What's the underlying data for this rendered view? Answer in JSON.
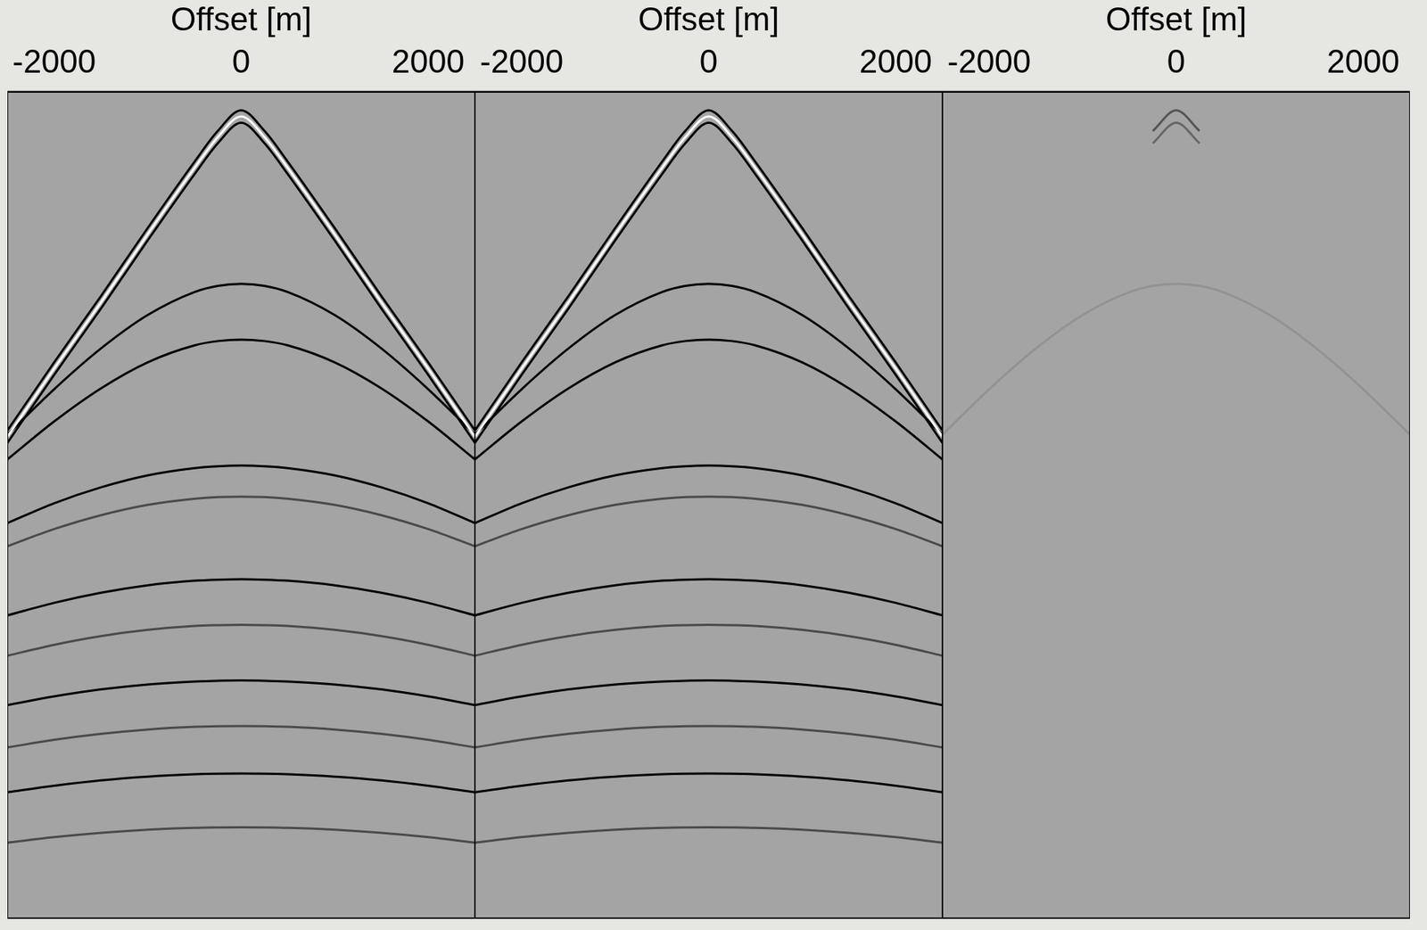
{
  "chart_data": [
    {
      "type": "line",
      "xlabel": "Offset [m]",
      "x": [
        -2500,
        -2000,
        -1500,
        -1000,
        -500,
        -250,
        0,
        250,
        500,
        1000,
        1500,
        2000,
        2500
      ],
      "xlim": [
        -2500,
        2500
      ],
      "xticks": [
        -2000,
        0,
        2000
      ],
      "ylim": [
        4,
        0
      ],
      "tick_labels": "x",
      "grid": false,
      "series": [
        {
          "color": "#000000",
          "values": [
            1.64,
            1.31,
            0.99,
            0.66,
            0.34,
            0.19,
            0.09,
            0.19,
            0.34,
            0.66,
            0.99,
            1.31,
            1.64
          ]
        },
        {
          "color": "#ffffff",
          "values": [
            1.67,
            1.34,
            1.02,
            0.69,
            0.37,
            0.22,
            0.12,
            0.22,
            0.37,
            0.69,
            1.02,
            1.34,
            1.67
          ]
        },
        {
          "color": "#000000",
          "values": [
            1.7,
            1.37,
            1.05,
            0.72,
            0.4,
            0.25,
            0.15,
            0.25,
            0.4,
            0.72,
            1.05,
            1.37,
            1.7
          ]
        },
        {
          "color": "#000000",
          "values": [
            1.66,
            1.44,
            1.243,
            1.081,
            0.97,
            0.94,
            0.93,
            0.94,
            0.97,
            1.081,
            1.243,
            1.44,
            1.66
          ]
        },
        {
          "color": "#000000",
          "values": [
            1.78,
            1.596,
            1.436,
            1.31,
            1.228,
            1.207,
            1.2,
            1.207,
            1.228,
            1.31,
            1.436,
            1.596,
            1.78
          ]
        },
        {
          "color": "#000000",
          "values": [
            2.088,
            1.992,
            1.915,
            1.857,
            1.822,
            1.813,
            1.81,
            1.813,
            1.822,
            1.857,
            1.915,
            1.992,
            2.088
          ]
        },
        {
          "color": "#4a4a4a",
          "values": [
            2.2,
            2.117,
            2.05,
            2.0,
            1.97,
            1.962,
            1.96,
            1.962,
            1.97,
            2.0,
            2.05,
            2.117,
            2.2
          ]
        },
        {
          "color": "#000000",
          "values": [
            2.535,
            2.474,
            2.425,
            2.389,
            2.367,
            2.362,
            2.36,
            2.362,
            2.367,
            2.389,
            2.425,
            2.474,
            2.535
          ]
        },
        {
          "color": "#4a4a4a",
          "values": [
            2.73,
            2.677,
            2.635,
            2.605,
            2.586,
            2.582,
            2.58,
            2.582,
            2.586,
            2.605,
            2.635,
            2.677,
            2.73
          ]
        },
        {
          "color": "#000000",
          "values": [
            2.969,
            2.927,
            2.893,
            2.869,
            2.855,
            2.851,
            2.85,
            2.851,
            2.855,
            2.869,
            2.893,
            2.927,
            2.969
          ]
        },
        {
          "color": "#4a4a4a",
          "values": [
            3.174,
            3.137,
            3.108,
            3.087,
            3.074,
            3.071,
            3.07,
            3.071,
            3.074,
            3.087,
            3.108,
            3.137,
            3.174
          ]
        },
        {
          "color": "#000000",
          "values": [
            3.391,
            3.359,
            3.333,
            3.315,
            3.304,
            3.301,
            3.3,
            3.301,
            3.304,
            3.315,
            3.333,
            3.359,
            3.391
          ]
        },
        {
          "color": "#4a4a4a",
          "values": [
            3.635,
            3.608,
            3.587,
            3.572,
            3.563,
            3.561,
            3.56,
            3.561,
            3.563,
            3.572,
            3.587,
            3.608,
            3.635
          ]
        }
      ]
    },
    {
      "type": "line",
      "xlabel": "Offset [m]",
      "x": [
        -2500,
        -2000,
        -1500,
        -1000,
        -500,
        -250,
        0,
        250,
        500,
        1000,
        1500,
        2000,
        2500
      ],
      "xlim": [
        -2500,
        2500
      ],
      "xticks": [
        -2000,
        0,
        2000
      ],
      "ylim": [
        4,
        0
      ],
      "tick_labels": "x",
      "grid": false,
      "series": [
        {
          "color": "#000000",
          "values": [
            1.64,
            1.31,
            0.99,
            0.66,
            0.34,
            0.19,
            0.09,
            0.19,
            0.34,
            0.66,
            0.99,
            1.31,
            1.64
          ]
        },
        {
          "color": "#ffffff",
          "values": [
            1.67,
            1.34,
            1.02,
            0.69,
            0.37,
            0.22,
            0.12,
            0.22,
            0.37,
            0.69,
            1.02,
            1.34,
            1.67
          ]
        },
        {
          "color": "#000000",
          "values": [
            1.7,
            1.37,
            1.05,
            0.72,
            0.4,
            0.25,
            0.15,
            0.25,
            0.4,
            0.72,
            1.05,
            1.37,
            1.7
          ]
        },
        {
          "color": "#000000",
          "values": [
            1.66,
            1.44,
            1.243,
            1.081,
            0.97,
            0.94,
            0.93,
            0.94,
            0.97,
            1.081,
            1.243,
            1.44,
            1.66
          ]
        },
        {
          "color": "#000000",
          "values": [
            1.78,
            1.596,
            1.436,
            1.31,
            1.228,
            1.207,
            1.2,
            1.207,
            1.228,
            1.31,
            1.436,
            1.596,
            1.78
          ]
        },
        {
          "color": "#000000",
          "values": [
            2.088,
            1.992,
            1.915,
            1.857,
            1.822,
            1.813,
            1.81,
            1.813,
            1.822,
            1.857,
            1.915,
            1.992,
            2.088
          ]
        },
        {
          "color": "#4a4a4a",
          "values": [
            2.2,
            2.117,
            2.05,
            2.0,
            1.97,
            1.962,
            1.96,
            1.962,
            1.97,
            2.0,
            2.05,
            2.117,
            2.2
          ]
        },
        {
          "color": "#000000",
          "values": [
            2.535,
            2.474,
            2.425,
            2.389,
            2.367,
            2.362,
            2.36,
            2.362,
            2.367,
            2.389,
            2.425,
            2.474,
            2.535
          ]
        },
        {
          "color": "#4a4a4a",
          "values": [
            2.73,
            2.677,
            2.635,
            2.605,
            2.586,
            2.582,
            2.58,
            2.582,
            2.586,
            2.605,
            2.635,
            2.677,
            2.73
          ]
        },
        {
          "color": "#000000",
          "values": [
            2.969,
            2.927,
            2.893,
            2.869,
            2.855,
            2.851,
            2.85,
            2.851,
            2.855,
            2.869,
            2.893,
            2.927,
            2.969
          ]
        },
        {
          "color": "#4a4a4a",
          "values": [
            3.174,
            3.137,
            3.108,
            3.087,
            3.074,
            3.071,
            3.07,
            3.071,
            3.074,
            3.087,
            3.108,
            3.137,
            3.174
          ]
        },
        {
          "color": "#000000",
          "values": [
            3.391,
            3.359,
            3.333,
            3.315,
            3.304,
            3.301,
            3.3,
            3.301,
            3.304,
            3.315,
            3.333,
            3.359,
            3.391
          ]
        },
        {
          "color": "#4a4a4a",
          "values": [
            3.635,
            3.608,
            3.587,
            3.572,
            3.563,
            3.561,
            3.56,
            3.561,
            3.563,
            3.572,
            3.587,
            3.608,
            3.635
          ]
        }
      ]
    },
    {
      "type": "line",
      "xlabel": "Offset [m]",
      "x": [
        -2500,
        -2000,
        -1500,
        -1000,
        -500,
        -250,
        0,
        250,
        500,
        1000,
        1500,
        2000,
        2500
      ],
      "xlim": [
        -2500,
        2500
      ],
      "xticks": [
        -2000,
        0,
        2000
      ],
      "ylim": [
        4,
        0
      ],
      "tick_labels": "x",
      "grid": false,
      "series": [
        {
          "color": "#555555",
          "values": [
            null,
            null,
            null,
            null,
            null,
            0.19,
            0.09,
            0.19,
            null,
            null,
            null,
            null,
            null
          ]
        },
        {
          "color": "#666666",
          "values": [
            null,
            null,
            null,
            null,
            null,
            0.25,
            0.15,
            0.25,
            null,
            null,
            null,
            null,
            null
          ]
        },
        {
          "color": "#929292",
          "values": [
            1.66,
            1.44,
            1.243,
            1.081,
            0.97,
            0.94,
            0.93,
            0.94,
            0.97,
            1.081,
            1.243,
            1.44,
            1.66
          ]
        }
      ]
    }
  ]
}
